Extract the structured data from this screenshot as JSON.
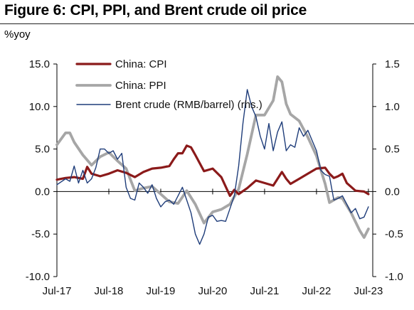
{
  "title": "Figure 6: CPI, PPI, and Brent crude oil price",
  "ylabel": "%yoy",
  "chart_data": {
    "type": "line",
    "x_ticks": [
      "Jul-17",
      "Jul-18",
      "Jul-19",
      "Jul-20",
      "Jul-21",
      "Jul-22",
      "Jul-23"
    ],
    "x_range": [
      "2017-07",
      "2023-08"
    ],
    "ylim_left": [
      -10.0,
      15.0
    ],
    "ylim_right": [
      -1.0,
      1.5
    ],
    "y_ticks_left": [
      "-10.0",
      "-5.0",
      "0.0",
      "5.0",
      "10.0",
      "15.0"
    ],
    "y_ticks_right": [
      "-1.0",
      "-0.5",
      "0.0",
      "0.5",
      "1.0",
      "1.5"
    ],
    "grid": false,
    "legend_position": "top-center",
    "series": [
      {
        "name": "China: CPI",
        "axis": "left",
        "color": "#8b1a1a",
        "x": [
          "2017-07",
          "2017-09",
          "2017-11",
          "2018-01",
          "2018-02",
          "2018-03",
          "2018-05",
          "2018-07",
          "2018-09",
          "2018-11",
          "2019-01",
          "2019-03",
          "2019-05",
          "2019-07",
          "2019-09",
          "2019-10",
          "2019-11",
          "2019-12",
          "2020-01",
          "2020-02",
          "2020-03",
          "2020-05",
          "2020-07",
          "2020-09",
          "2020-11",
          "2020-12",
          "2021-01",
          "2021-03",
          "2021-05",
          "2021-07",
          "2021-09",
          "2021-10",
          "2021-11",
          "2021-12",
          "2022-01",
          "2022-03",
          "2022-05",
          "2022-07",
          "2022-09",
          "2022-10",
          "2022-11",
          "2022-12",
          "2023-01",
          "2023-02",
          "2023-04",
          "2023-06",
          "2023-07"
        ],
        "values": [
          1.4,
          1.6,
          1.7,
          1.5,
          2.9,
          2.1,
          1.8,
          2.1,
          2.5,
          2.2,
          1.7,
          2.3,
          2.7,
          2.8,
          3.0,
          3.8,
          4.5,
          4.5,
          5.4,
          5.2,
          4.3,
          2.4,
          2.7,
          1.7,
          -0.5,
          0.2,
          -0.3,
          0.4,
          1.3,
          1.0,
          0.7,
          1.5,
          2.3,
          1.5,
          0.9,
          1.5,
          2.1,
          2.7,
          2.8,
          2.1,
          1.6,
          1.8,
          2.1,
          1.0,
          0.1,
          0.0,
          -0.3
        ]
      },
      {
        "name": "China: PPI",
        "axis": "left",
        "color": "#a6a6a6",
        "x": [
          "2017-07",
          "2017-09",
          "2017-10",
          "2017-11",
          "2018-01",
          "2018-03",
          "2018-05",
          "2018-07",
          "2018-09",
          "2018-11",
          "2019-01",
          "2019-03",
          "2019-05",
          "2019-07",
          "2019-09",
          "2019-11",
          "2020-01",
          "2020-03",
          "2020-05",
          "2020-07",
          "2020-09",
          "2020-11",
          "2021-01",
          "2021-03",
          "2021-05",
          "2021-07",
          "2021-09",
          "2021-10",
          "2021-11",
          "2021-12",
          "2022-01",
          "2022-03",
          "2022-05",
          "2022-07",
          "2022-09",
          "2022-10",
          "2022-12",
          "2023-01",
          "2023-03",
          "2023-05",
          "2023-06",
          "2023-07"
        ],
        "values": [
          5.5,
          6.9,
          6.9,
          5.8,
          4.3,
          3.1,
          4.1,
          4.6,
          3.6,
          2.7,
          0.1,
          0.4,
          0.6,
          -0.3,
          -1.2,
          -1.4,
          0.1,
          -1.5,
          -3.7,
          -2.4,
          -2.1,
          -1.5,
          0.3,
          4.4,
          9.0,
          9.0,
          10.7,
          13.5,
          12.9,
          10.3,
          9.1,
          8.3,
          6.4,
          4.2,
          0.9,
          -1.3,
          -0.7,
          -0.8,
          -2.5,
          -4.6,
          -5.4,
          -4.4
        ]
      },
      {
        "name": "Brent crude (RMB/barrel) (rhs.)",
        "axis": "right",
        "color": "#1f3d7a",
        "x": [
          "2017-07",
          "2017-09",
          "2017-10",
          "2017-11",
          "2017-12",
          "2018-01",
          "2018-02",
          "2018-03",
          "2018-04",
          "2018-05",
          "2018-06",
          "2018-07",
          "2018-08",
          "2018-09",
          "2018-10",
          "2018-11",
          "2018-12",
          "2019-01",
          "2019-02",
          "2019-03",
          "2019-04",
          "2019-05",
          "2019-06",
          "2019-07",
          "2019-08",
          "2019-09",
          "2019-10",
          "2019-11",
          "2019-12",
          "2020-01",
          "2020-02",
          "2020-03",
          "2020-04",
          "2020-05",
          "2020-06",
          "2020-07",
          "2020-08",
          "2020-09",
          "2020-10",
          "2020-11",
          "2020-12",
          "2021-01",
          "2021-02",
          "2021-03",
          "2021-04",
          "2021-05",
          "2021-06",
          "2021-07",
          "2021-08",
          "2021-09",
          "2021-10",
          "2021-11",
          "2021-12",
          "2022-01",
          "2022-02",
          "2022-03",
          "2022-04",
          "2022-05",
          "2022-06",
          "2022-07",
          "2022-08",
          "2022-09",
          "2022-10",
          "2022-11",
          "2022-12",
          "2023-01",
          "2023-02",
          "2023-03",
          "2023-04",
          "2023-05",
          "2023-06",
          "2023-07"
        ],
        "values": [
          0.08,
          0.15,
          0.12,
          0.3,
          0.1,
          0.25,
          0.1,
          0.15,
          0.28,
          0.5,
          0.5,
          0.45,
          0.48,
          0.38,
          0.45,
          0.05,
          -0.08,
          -0.1,
          0.1,
          0.05,
          -0.02,
          0.08,
          -0.08,
          -0.18,
          -0.12,
          -0.1,
          -0.15,
          -0.05,
          0.05,
          -0.1,
          -0.25,
          -0.5,
          -0.62,
          -0.5,
          -0.3,
          -0.28,
          -0.35,
          -0.34,
          -0.35,
          -0.2,
          -0.05,
          0.3,
          0.8,
          1.2,
          1.0,
          0.88,
          0.65,
          0.5,
          0.8,
          0.48,
          0.7,
          0.82,
          0.48,
          0.55,
          0.52,
          0.75,
          0.65,
          0.72,
          0.6,
          0.48,
          0.25,
          0.2,
          0.18,
          -0.1,
          -0.08,
          -0.05,
          -0.15,
          -0.25,
          -0.2,
          -0.32,
          -0.3,
          -0.18
        ]
      }
    ]
  }
}
